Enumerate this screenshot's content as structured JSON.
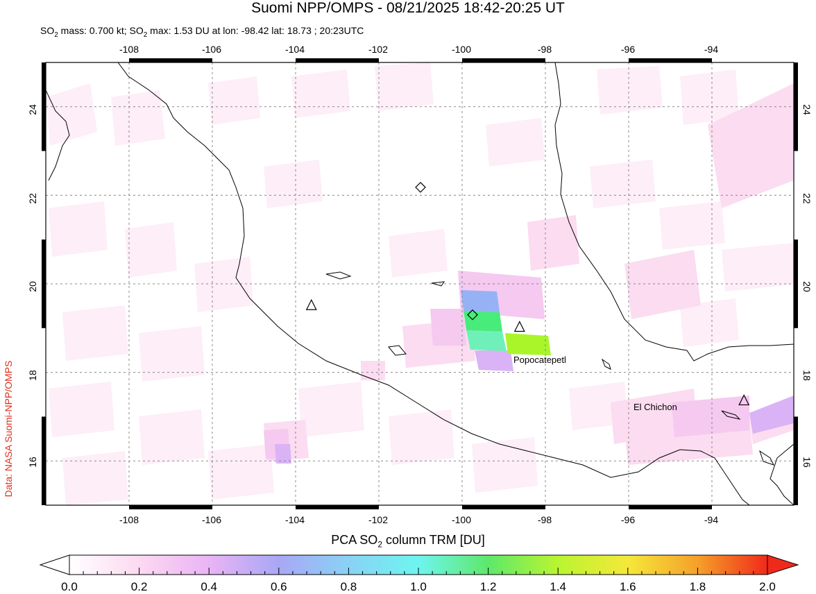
{
  "title": "Suomi NPP/OMPS - 08/21/2025 18:42-20:25 UT",
  "subtitle": {
    "mass_prefix": "SO",
    "mass_sub": "2",
    "mass_text": " mass: 0.700 kt; SO",
    "max_sub": "2",
    "max_text": " max: 1.53 DU at lon: -98.42 lat: 18.73 ; 20:23UTC"
  },
  "credit": "Data: NASA Suomi-NPP/OMPS",
  "map": {
    "lon_ticks": [
      "-108",
      "-106",
      "-104",
      "-102",
      "-100",
      "-98",
      "-96",
      "-94"
    ],
    "lat_ticks": [
      "16",
      "18",
      "20",
      "22",
      "24"
    ],
    "volcanoes": [
      {
        "name": "Popocatepetl",
        "lon": -98.62,
        "lat": 19.02
      },
      {
        "name": "El Chichon",
        "lon": -93.23,
        "lat": 17.36
      },
      {
        "name": "",
        "lon": -103.62,
        "lat": 19.51
      }
    ],
    "max_markers": [
      {
        "lon": -99.75,
        "lat": 19.3
      },
      {
        "lon": -101.0,
        "lat": 22.18
      }
    ]
  },
  "colorbar": {
    "title_prefix": "PCA SO",
    "title_sub": "2",
    "title_suffix": " column TRM [DU]",
    "ticks": [
      "0.0",
      "0.2",
      "0.4",
      "0.6",
      "0.8",
      "1.0",
      "1.2",
      "1.4",
      "1.6",
      "1.8",
      "2.0"
    ],
    "range": [
      0.0,
      2.0
    ],
    "colors": [
      "#ffffff",
      "#fcd9f1",
      "#e9b4f5",
      "#a9a7f5",
      "#89d2f5",
      "#6ef5f0",
      "#5ee86a",
      "#b9f530",
      "#f5e83a",
      "#f5a02a",
      "#f02a1a"
    ]
  }
}
